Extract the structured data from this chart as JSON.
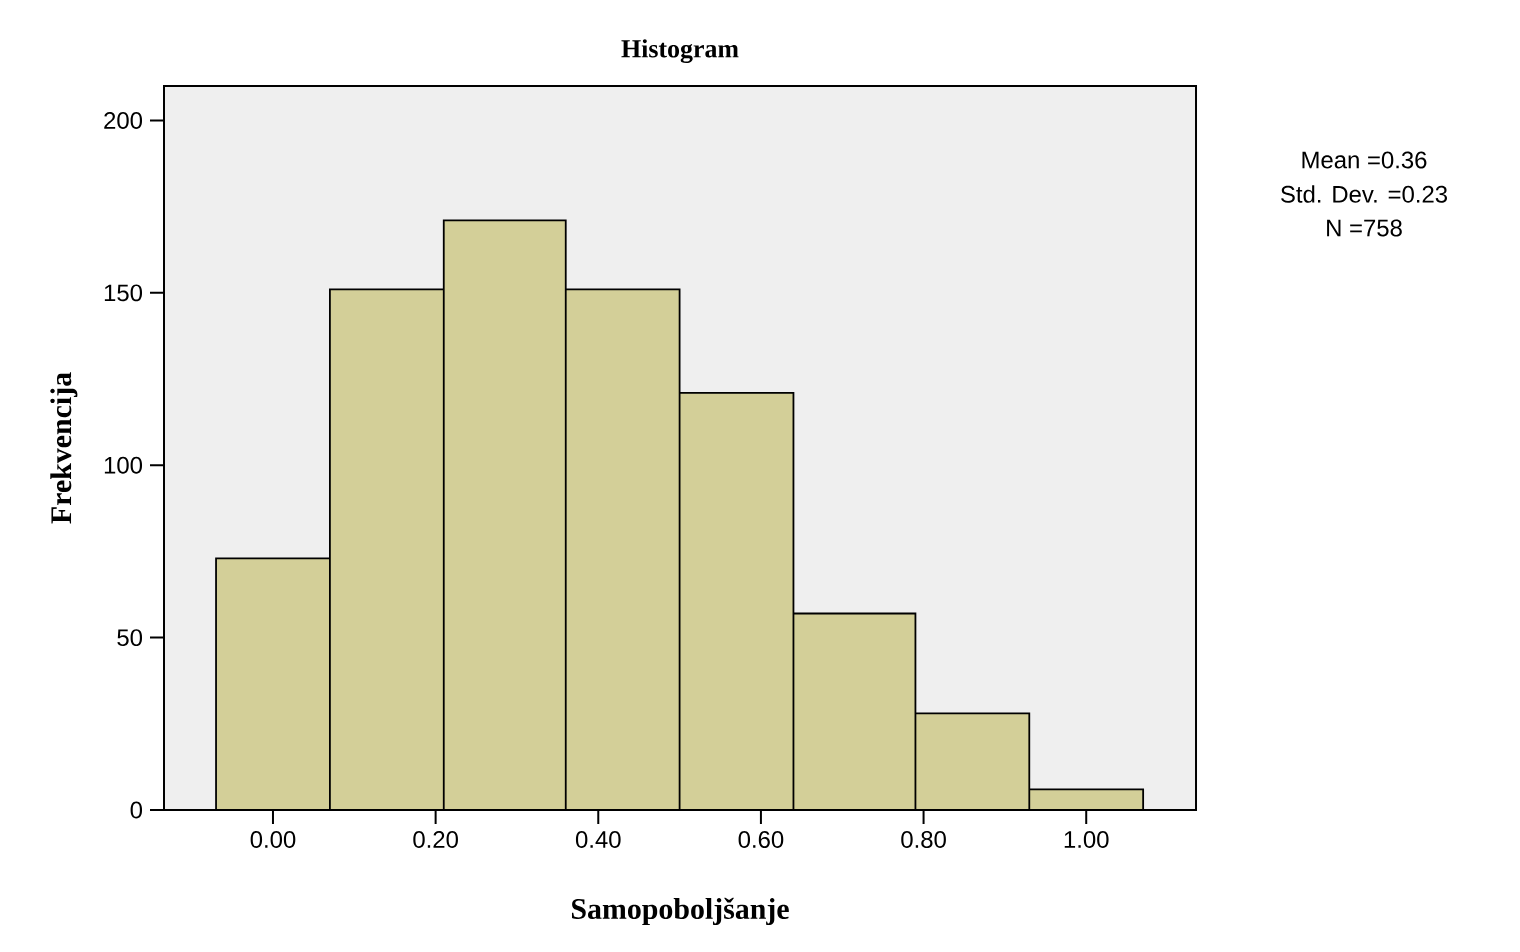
{
  "chart_data": {
    "type": "histogram",
    "title": "Histogram",
    "xlabel": "Samopoboljšanje",
    "ylabel": "Frekvencija",
    "bins": [
      -0.07,
      0.07,
      0.21,
      0.36,
      0.5,
      0.64,
      0.79,
      0.93,
      1.07
    ],
    "values": [
      73,
      151,
      171,
      151,
      121,
      57,
      28,
      6
    ],
    "color": "#d3cf98",
    "xlim": [
      -0.134,
      1.135
    ],
    "ylim": [
      0,
      210
    ],
    "xticks": [
      {
        "value": 0,
        "label": "0.00"
      },
      {
        "value": 0.2,
        "label": "0.20"
      },
      {
        "value": 0.4,
        "label": "0.40"
      },
      {
        "value": 0.6,
        "label": "0.60"
      },
      {
        "value": 0.8,
        "label": "0.80"
      },
      {
        "value": 1,
        "label": "1.00"
      }
    ],
    "yticks": [
      0,
      50,
      100,
      150,
      200
    ],
    "grid": false,
    "annotations": [
      "Mean =0.36",
      "Std. Dev. =0.23",
      "N =758"
    ]
  }
}
